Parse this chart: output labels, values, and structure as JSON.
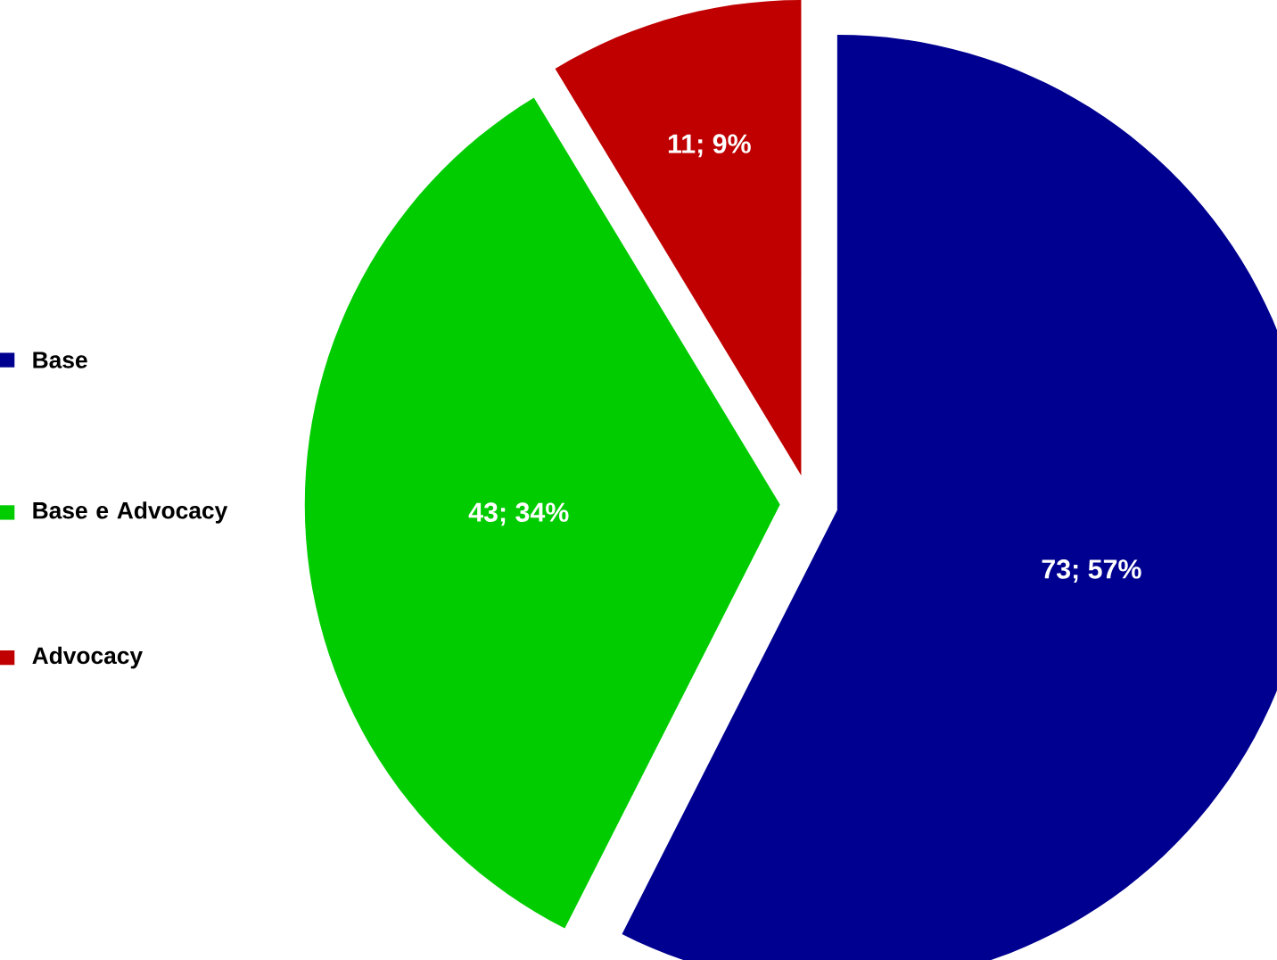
{
  "chart_data": {
    "type": "pie",
    "categories": [
      "Base",
      "Base e Advocacy",
      "Advocacy"
    ],
    "values": [
      73,
      43,
      11
    ],
    "value_labels": [
      "73; 57%",
      "43; 34%",
      "11; 9%"
    ],
    "colors": [
      "#000090",
      "#00cc00",
      "#c00000"
    ],
    "legend": "left"
  }
}
